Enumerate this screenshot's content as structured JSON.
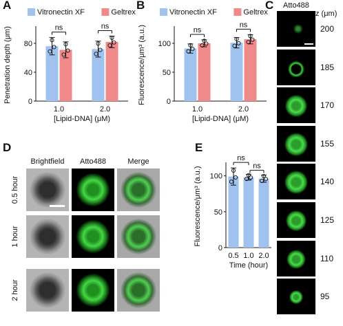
{
  "panels": {
    "A": {
      "letter": "A",
      "legend": [
        {
          "name": "Vitronectin XF",
          "color": "#9fc3ee"
        },
        {
          "name": "Geltrex",
          "color": "#f08a8a"
        }
      ],
      "chart_data": {
        "type": "bar",
        "categories": [
          "1.0",
          "2.0"
        ],
        "xlabel": "[Lipid-DNA] (μM)",
        "ylabel": "Penetration depth (μm)",
        "ylim": [
          0,
          100
        ],
        "yticks": [
          0,
          40,
          80
        ],
        "series": [
          {
            "name": "Vitronectin XF",
            "color": "#9fc3ee",
            "values": [
              76,
              72
            ],
            "errors": [
              12,
              11
            ]
          },
          {
            "name": "Geltrex",
            "color": "#f08a8a",
            "values": [
              71,
              82
            ],
            "errors": [
              11,
              8
            ]
          }
        ],
        "annotations": [
          "ns",
          "ns"
        ]
      }
    },
    "B": {
      "letter": "B",
      "legend": [
        {
          "name": "Vitronectin XF",
          "color": "#9fc3ee"
        },
        {
          "name": "Geltrex",
          "color": "#f08a8a"
        }
      ],
      "chart_data": {
        "type": "bar",
        "categories": [
          "1.0",
          "2.0"
        ],
        "xlabel": "[Lipid-DNA] (μM)",
        "ylabel": "Fluorescence/μm³ (a.u.)",
        "ylim": [
          0,
          125
        ],
        "yticks": [
          0,
          50,
          100
        ],
        "series": [
          {
            "name": "Vitronectin XF",
            "color": "#9fc3ee",
            "values": [
              91,
              101
            ],
            "errors": [
              8,
              9
            ]
          },
          {
            "name": "Geltrex",
            "color": "#f08a8a",
            "values": [
              100,
              107
            ],
            "errors": [
              6,
              8
            ]
          }
        ],
        "annotations": [
          "ns",
          "ns"
        ]
      }
    },
    "C": {
      "letter": "C",
      "title": "Atto488",
      "z_label": "z (μm)",
      "z_values": [
        "200",
        "185",
        "170",
        "155",
        "140",
        "125",
        "110",
        "95"
      ]
    },
    "D": {
      "letter": "D",
      "columns": [
        "Brightfield",
        "Atto488",
        "Merge"
      ],
      "rows": [
        "0.5 hour",
        "1 hour",
        "2 hour"
      ]
    },
    "E": {
      "letter": "E",
      "chart_data": {
        "type": "bar",
        "categories": [
          "0.5",
          "1.0",
          "2.0"
        ],
        "xlabel": "Time (hour)",
        "ylabel": "Fluorescence/μm³ (a.u.)",
        "ylim": [
          0,
          115
        ],
        "yticks": [
          0,
          50,
          100
        ],
        "series": [
          {
            "color": "#9fc3ee",
            "values": [
              99,
              98,
              96
            ],
            "errors": [
              12,
              4,
              5
            ]
          }
        ],
        "annotations": [
          "ns",
          "ns"
        ]
      }
    }
  }
}
